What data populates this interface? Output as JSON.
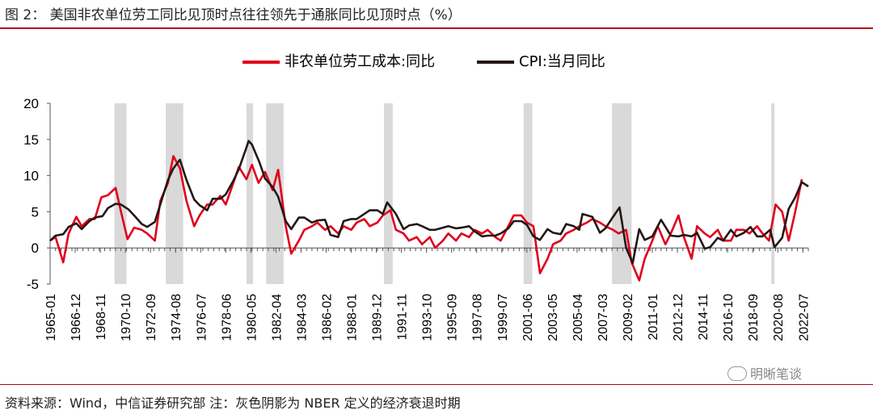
{
  "figure": {
    "label": "图 2：",
    "title": "美国非农单位劳工同比见顶时点往往领先于通胀同比见顶时点（%）",
    "source": "资料来源：Wind，中信证券研究部   注：灰色阴影为 NBER 定义的经济衰退时期",
    "watermark": "明晰笔谈",
    "accent_color": "#b3001b"
  },
  "chart_data": {
    "type": "line",
    "title": "",
    "xlabel": "",
    "ylabel": "",
    "ylim": [
      -5,
      20
    ],
    "yticks": [
      -5,
      0,
      5,
      10,
      15,
      20
    ],
    "x_start": "1965-01",
    "x_end": "2022-12",
    "xtick_labels": [
      "1965-01",
      "1966-12",
      "1968-11",
      "1970-10",
      "1972-09",
      "1974-08",
      "1976-07",
      "1978-06",
      "1980-05",
      "1982-04",
      "1984-03",
      "1986-02",
      "1988-01",
      "1989-12",
      "1991-11",
      "1993-10",
      "1995-09",
      "1997-08",
      "1999-07",
      "2001-06",
      "2003-05",
      "2005-04",
      "2007-03",
      "2009-02",
      "2011-01",
      "2012-12",
      "2014-11",
      "2016-10",
      "2018-09",
      "2020-08",
      "2022-07"
    ],
    "recessions": [
      [
        "1969-12",
        "1970-11"
      ],
      [
        "1973-11",
        "1975-03"
      ],
      [
        "1980-01",
        "1980-07"
      ],
      [
        "1981-07",
        "1982-11"
      ],
      [
        "1990-07",
        "1991-03"
      ],
      [
        "2001-03",
        "2001-11"
      ],
      [
        "2007-12",
        "2009-06"
      ],
      [
        "2020-02",
        "2020-04"
      ]
    ],
    "legend": [
      "非农单位劳工成本:同比",
      "CPI:当月同比"
    ],
    "legend_position": "top-center",
    "grid": false,
    "series": [
      {
        "name": "非农单位劳工成本:同比",
        "color": "#e0001b",
        "points": [
          [
            "1965-01",
            1.0
          ],
          [
            "1965-06",
            1.5
          ],
          [
            "1966-01",
            -2.0
          ],
          [
            "1966-06",
            2.0
          ],
          [
            "1967-01",
            4.3
          ],
          [
            "1967-06",
            3.0
          ],
          [
            "1968-01",
            4.0
          ],
          [
            "1968-06",
            4.0
          ],
          [
            "1968-12",
            7.0
          ],
          [
            "1969-06",
            7.3
          ],
          [
            "1970-01",
            8.3
          ],
          [
            "1970-06",
            5.0
          ],
          [
            "1970-12",
            1.2
          ],
          [
            "1971-06",
            2.8
          ],
          [
            "1972-01",
            2.5
          ],
          [
            "1972-06",
            2.0
          ],
          [
            "1973-01",
            1.0
          ],
          [
            "1973-06",
            6.5
          ],
          [
            "1974-01",
            9.0
          ],
          [
            "1974-06",
            12.7
          ],
          [
            "1974-12",
            11.0
          ],
          [
            "1975-06",
            6.5
          ],
          [
            "1976-01",
            3.0
          ],
          [
            "1976-06",
            4.5
          ],
          [
            "1977-01",
            6.0
          ],
          [
            "1977-06",
            6.0
          ],
          [
            "1978-01",
            7.2
          ],
          [
            "1978-06",
            6.0
          ],
          [
            "1979-01",
            9.0
          ],
          [
            "1979-06",
            11.2
          ],
          [
            "1980-01",
            9.5
          ],
          [
            "1980-06",
            11.5
          ],
          [
            "1980-12",
            9.0
          ],
          [
            "1981-06",
            10.5
          ],
          [
            "1982-01",
            8.0
          ],
          [
            "1982-06",
            10.8
          ],
          [
            "1983-01",
            3.0
          ],
          [
            "1983-06",
            -0.8
          ],
          [
            "1984-01",
            1.0
          ],
          [
            "1984-06",
            2.5
          ],
          [
            "1985-01",
            3.0
          ],
          [
            "1985-06",
            3.5
          ],
          [
            "1986-01",
            2.5
          ],
          [
            "1986-06",
            3.0
          ],
          [
            "1987-01",
            2.0
          ],
          [
            "1987-06",
            3.0
          ],
          [
            "1988-01",
            2.5
          ],
          [
            "1988-06",
            3.5
          ],
          [
            "1989-01",
            4.0
          ],
          [
            "1989-06",
            3.0
          ],
          [
            "1990-01",
            3.5
          ],
          [
            "1990-06",
            4.5
          ],
          [
            "1991-01",
            5.2
          ],
          [
            "1991-06",
            2.5
          ],
          [
            "1992-01",
            2.0
          ],
          [
            "1992-06",
            1.0
          ],
          [
            "1993-01",
            1.5
          ],
          [
            "1993-06",
            0.5
          ],
          [
            "1994-01",
            1.5
          ],
          [
            "1994-06",
            0.0
          ],
          [
            "1995-01",
            1.0
          ],
          [
            "1995-06",
            2.0
          ],
          [
            "1996-01",
            1.0
          ],
          [
            "1996-06",
            2.0
          ],
          [
            "1997-01",
            1.5
          ],
          [
            "1997-06",
            2.5
          ],
          [
            "1998-01",
            2.0
          ],
          [
            "1998-06",
            2.5
          ],
          [
            "1999-01",
            1.5
          ],
          [
            "1999-06",
            1.0
          ],
          [
            "2000-01",
            3.0
          ],
          [
            "2000-06",
            4.5
          ],
          [
            "2001-01",
            4.5
          ],
          [
            "2001-06",
            3.5
          ],
          [
            "2001-12",
            3.0
          ],
          [
            "2002-06",
            -3.5
          ],
          [
            "2003-01",
            -1.5
          ],
          [
            "2003-06",
            0.5
          ],
          [
            "2004-01",
            1.0
          ],
          [
            "2004-06",
            2.0
          ],
          [
            "2005-01",
            2.5
          ],
          [
            "2005-06",
            3.0
          ],
          [
            "2006-01",
            3.5
          ],
          [
            "2006-06",
            4.0
          ],
          [
            "2007-01",
            3.5
          ],
          [
            "2007-06",
            3.0
          ],
          [
            "2008-01",
            2.5
          ],
          [
            "2008-06",
            2.0
          ],
          [
            "2009-01",
            2.5
          ],
          [
            "2009-06",
            -2.0
          ],
          [
            "2010-01",
            -4.5
          ],
          [
            "2010-06",
            -1.5
          ],
          [
            "2011-01",
            1.0
          ],
          [
            "2011-06",
            3.0
          ],
          [
            "2012-01",
            0.5
          ],
          [
            "2012-06",
            2.0
          ],
          [
            "2013-01",
            4.5
          ],
          [
            "2013-06",
            1.5
          ],
          [
            "2014-01",
            -1.5
          ],
          [
            "2014-06",
            3.0
          ],
          [
            "2015-01",
            2.0
          ],
          [
            "2015-06",
            1.5
          ],
          [
            "2016-01",
            2.5
          ],
          [
            "2016-06",
            1.0
          ],
          [
            "2017-01",
            1.0
          ],
          [
            "2017-06",
            2.5
          ],
          [
            "2018-01",
            2.5
          ],
          [
            "2018-06",
            2.0
          ],
          [
            "2019-01",
            3.0
          ],
          [
            "2019-06",
            2.0
          ],
          [
            "2019-12",
            1.0
          ],
          [
            "2020-06",
            6.0
          ],
          [
            "2020-12",
            5.0
          ],
          [
            "2021-06",
            1.0
          ],
          [
            "2021-12",
            5.0
          ],
          [
            "2022-06",
            9.5
          ]
        ]
      },
      {
        "name": "CPI:当月同比",
        "color": "#231815",
        "points": [
          [
            "1965-01",
            1.0
          ],
          [
            "1965-06",
            1.7
          ],
          [
            "1966-01",
            1.9
          ],
          [
            "1966-06",
            2.9
          ],
          [
            "1967-01",
            3.4
          ],
          [
            "1967-06",
            2.6
          ],
          [
            "1968-01",
            3.7
          ],
          [
            "1968-06",
            4.2
          ],
          [
            "1969-01",
            4.4
          ],
          [
            "1969-06",
            5.5
          ],
          [
            "1970-01",
            6.1
          ],
          [
            "1970-06",
            6.0
          ],
          [
            "1971-01",
            5.3
          ],
          [
            "1971-06",
            4.5
          ],
          [
            "1972-01",
            3.3
          ],
          [
            "1972-06",
            2.9
          ],
          [
            "1973-01",
            3.6
          ],
          [
            "1973-06",
            6.0
          ],
          [
            "1974-01",
            9.4
          ],
          [
            "1974-06",
            11.0
          ],
          [
            "1974-12",
            12.2
          ],
          [
            "1975-06",
            9.4
          ],
          [
            "1976-01",
            6.7
          ],
          [
            "1976-06",
            5.9
          ],
          [
            "1977-01",
            5.2
          ],
          [
            "1977-06",
            6.8
          ],
          [
            "1978-01",
            6.8
          ],
          [
            "1978-06",
            7.4
          ],
          [
            "1979-01",
            9.3
          ],
          [
            "1979-06",
            10.9
          ],
          [
            "1980-01",
            13.9
          ],
          [
            "1980-03",
            14.8
          ],
          [
            "1980-06",
            14.3
          ],
          [
            "1981-01",
            11.8
          ],
          [
            "1981-06",
            9.6
          ],
          [
            "1982-01",
            8.4
          ],
          [
            "1982-06",
            7.1
          ],
          [
            "1983-01",
            3.7
          ],
          [
            "1983-06",
            2.6
          ],
          [
            "1984-01",
            4.2
          ],
          [
            "1984-06",
            4.2
          ],
          [
            "1985-01",
            3.5
          ],
          [
            "1985-06",
            3.8
          ],
          [
            "1986-01",
            3.9
          ],
          [
            "1986-06",
            1.8
          ],
          [
            "1987-01",
            1.5
          ],
          [
            "1987-06",
            3.7
          ],
          [
            "1988-01",
            4.0
          ],
          [
            "1988-06",
            4.0
          ],
          [
            "1989-01",
            4.7
          ],
          [
            "1989-06",
            5.2
          ],
          [
            "1990-01",
            5.2
          ],
          [
            "1990-06",
            4.7
          ],
          [
            "1990-10",
            6.3
          ],
          [
            "1991-06",
            4.7
          ],
          [
            "1992-01",
            2.6
          ],
          [
            "1992-06",
            3.1
          ],
          [
            "1993-01",
            3.3
          ],
          [
            "1993-06",
            3.0
          ],
          [
            "1994-01",
            2.5
          ],
          [
            "1994-06",
            2.5
          ],
          [
            "1995-01",
            2.8
          ],
          [
            "1995-06",
            3.0
          ],
          [
            "1996-01",
            2.7
          ],
          [
            "1996-06",
            2.8
          ],
          [
            "1997-01",
            3.0
          ],
          [
            "1997-06",
            2.3
          ],
          [
            "1998-01",
            1.6
          ],
          [
            "1998-06",
            1.7
          ],
          [
            "1999-01",
            1.7
          ],
          [
            "1999-06",
            2.0
          ],
          [
            "2000-01",
            2.7
          ],
          [
            "2000-06",
            3.7
          ],
          [
            "2001-01",
            3.7
          ],
          [
            "2001-06",
            3.2
          ],
          [
            "2001-12",
            1.6
          ],
          [
            "2002-06",
            1.1
          ],
          [
            "2003-01",
            2.6
          ],
          [
            "2003-06",
            2.1
          ],
          [
            "2004-01",
            1.9
          ],
          [
            "2004-06",
            3.3
          ],
          [
            "2005-01",
            3.0
          ],
          [
            "2005-06",
            2.5
          ],
          [
            "2005-09",
            4.7
          ],
          [
            "2006-06",
            4.3
          ],
          [
            "2007-01",
            2.1
          ],
          [
            "2007-06",
            2.7
          ],
          [
            "2008-01",
            4.3
          ],
          [
            "2008-07",
            5.6
          ],
          [
            "2009-01",
            0.0
          ],
          [
            "2009-07",
            -2.1
          ],
          [
            "2010-01",
            2.6
          ],
          [
            "2010-06",
            1.1
          ],
          [
            "2011-01",
            1.6
          ],
          [
            "2011-09",
            3.9
          ],
          [
            "2012-06",
            1.7
          ],
          [
            "2013-01",
            1.6
          ],
          [
            "2013-06",
            1.8
          ],
          [
            "2014-01",
            1.6
          ],
          [
            "2014-06",
            2.1
          ],
          [
            "2015-01",
            -0.1
          ],
          [
            "2015-06",
            0.1
          ],
          [
            "2016-01",
            1.4
          ],
          [
            "2016-06",
            1.0
          ],
          [
            "2017-01",
            2.5
          ],
          [
            "2017-06",
            1.6
          ],
          [
            "2018-01",
            2.1
          ],
          [
            "2018-07",
            2.9
          ],
          [
            "2019-01",
            1.6
          ],
          [
            "2019-06",
            1.6
          ],
          [
            "2020-01",
            2.5
          ],
          [
            "2020-05",
            0.1
          ],
          [
            "2020-12",
            1.4
          ],
          [
            "2021-06",
            5.4
          ],
          [
            "2021-12",
            7.0
          ],
          [
            "2022-06",
            9.1
          ],
          [
            "2022-12",
            8.5
          ]
        ]
      }
    ]
  }
}
